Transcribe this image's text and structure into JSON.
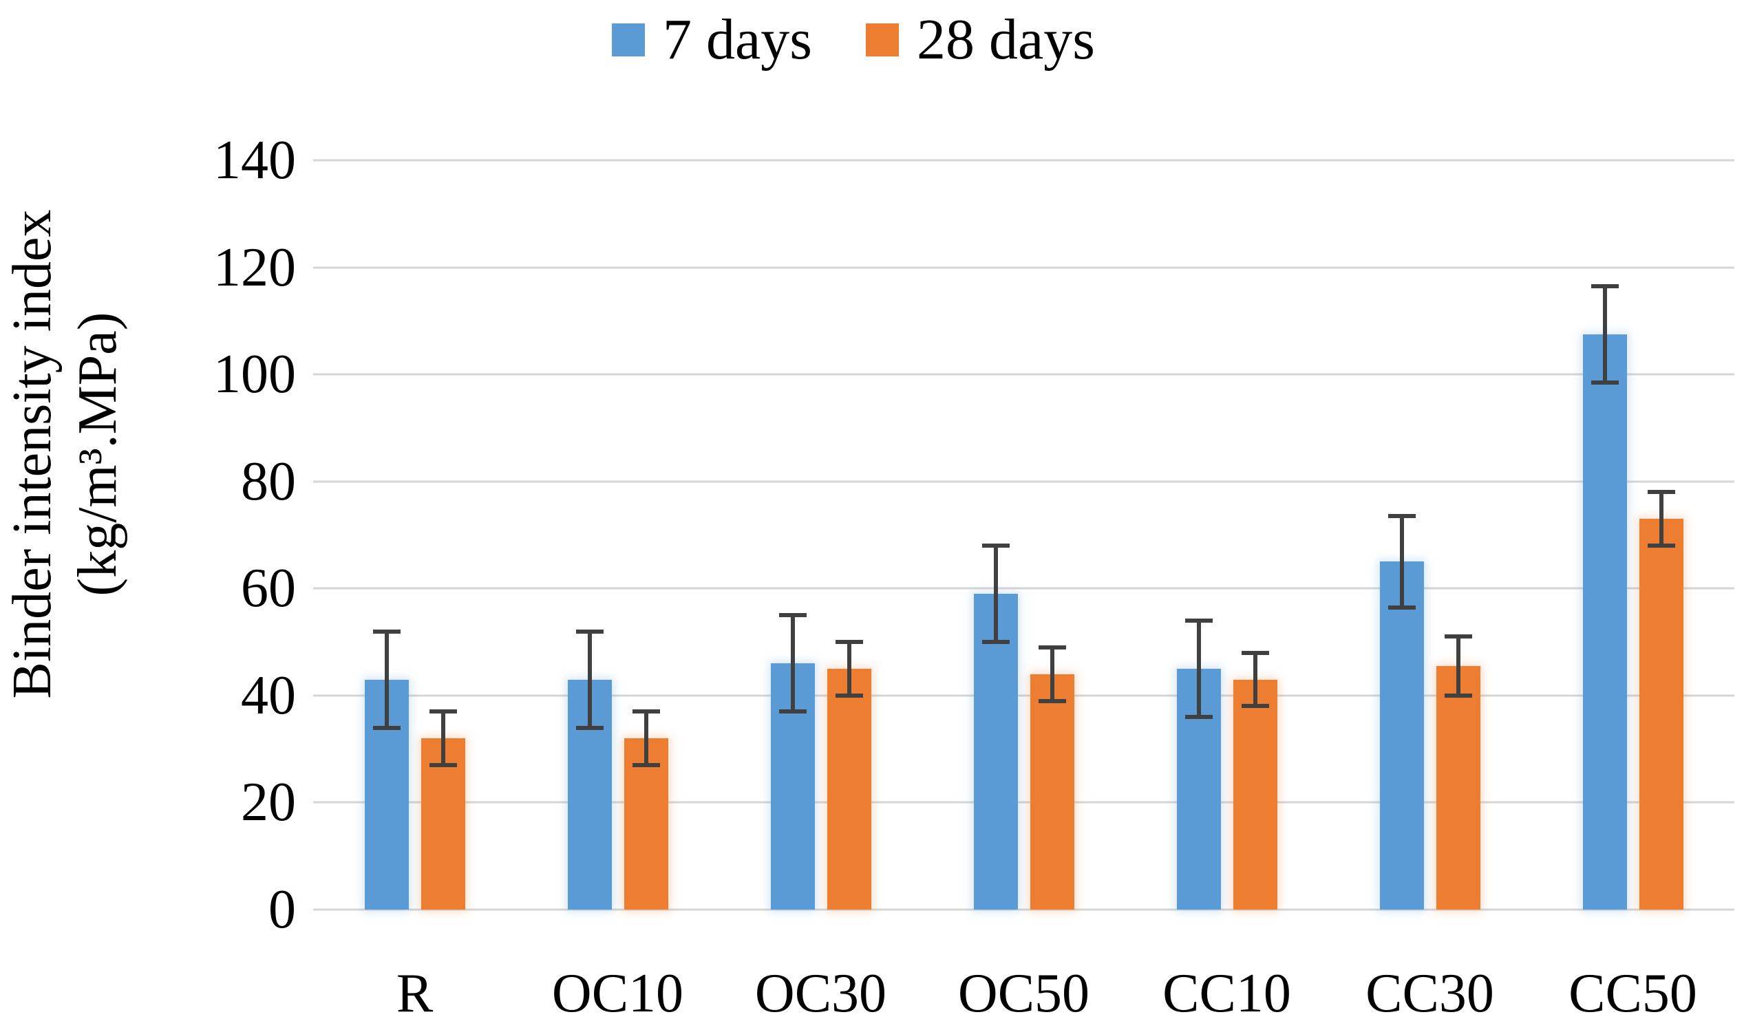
{
  "chart_data": {
    "type": "bar",
    "title": "",
    "xlabel": "",
    "ylabel_line1": "Binder intensity index",
    "ylabel_line2": "(kg/m³.MPa)",
    "categories": [
      "R",
      "OC10",
      "OC30",
      "OC50",
      "CC10",
      "CC30",
      "CC50"
    ],
    "series": [
      {
        "name": "7 days",
        "color": "#5B9BD5",
        "values": [
          43,
          43,
          46,
          59,
          45,
          65,
          107.5
        ],
        "errors": [
          9,
          9,
          9,
          9,
          9,
          8.5,
          9
        ]
      },
      {
        "name": "28 days",
        "color": "#ED7D31",
        "values": [
          32,
          32,
          45,
          44,
          43,
          45.5,
          73
        ],
        "errors": [
          5,
          5,
          5,
          5,
          5,
          5.5,
          5
        ]
      }
    ],
    "yticks": [
      0,
      20,
      40,
      60,
      80,
      100,
      120,
      140
    ],
    "ylim": [
      0,
      140
    ],
    "grid": true,
    "legend_position": "top-center",
    "gridline_color": "#D6D6D6",
    "errorbar_color": "#404040",
    "text_color": "#000000",
    "background": "#FFFFFF"
  }
}
